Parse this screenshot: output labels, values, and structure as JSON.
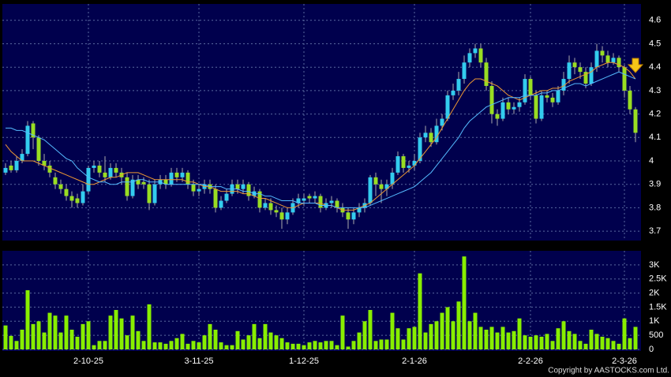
{
  "chart_data": [
    {
      "type": "candlestick",
      "ylim": [
        3.66,
        4.67
      ],
      "yticks": [
        3.7,
        3.8,
        3.9,
        4,
        4.1,
        4.2,
        4.3,
        4.4,
        4.5,
        4.6
      ],
      "grid": true,
      "up_color": "#33ccee",
      "down_color": "#99dd22",
      "wick_color": "#aaaaaa",
      "open": [
        3.95,
        3.98,
        3.96,
        4.0,
        4.03,
        4.16,
        4.1,
        4.0,
        3.98,
        3.93,
        3.9,
        3.88,
        3.85,
        3.84,
        3.82,
        3.87,
        3.97,
        3.98,
        3.95,
        3.93,
        3.97,
        3.95,
        3.93,
        3.85,
        3.92,
        3.91,
        3.9,
        3.82,
        3.9,
        3.92,
        3.9,
        3.95,
        3.93,
        3.95,
        3.9,
        3.87,
        3.88,
        3.9,
        3.88,
        3.8,
        3.83,
        3.86,
        3.9,
        3.88,
        3.9,
        3.85,
        3.87,
        3.8,
        3.82,
        3.79,
        3.78,
        3.75,
        3.78,
        3.82,
        3.83,
        3.85,
        3.84,
        3.85,
        3.8,
        3.82,
        3.83,
        3.8,
        3.78,
        3.75,
        3.78,
        3.8,
        3.82,
        3.93,
        3.9,
        3.88,
        3.9,
        3.95,
        4.02,
        3.97,
        3.98,
        4.0,
        4.1,
        4.12,
        4.08,
        4.15,
        4.18,
        4.28,
        4.3,
        4.35,
        4.42,
        4.46,
        4.48,
        4.42,
        4.32,
        4.2,
        4.18,
        4.25,
        4.22,
        4.23,
        4.25,
        4.35,
        4.28,
        4.18,
        4.28,
        4.27,
        4.25,
        4.3,
        4.35,
        4.42,
        4.4,
        4.38,
        4.33,
        4.4,
        4.47,
        4.45,
        4.42,
        4.44,
        4.4,
        4.3,
        4.22
      ],
      "high": [
        3.99,
        4.0,
        4.02,
        4.05,
        4.17,
        4.17,
        4.11,
        4.03,
        4.0,
        3.95,
        3.92,
        3.9,
        3.87,
        3.86,
        3.9,
        3.98,
        4.0,
        4.0,
        4.02,
        3.99,
        3.99,
        3.97,
        3.95,
        3.94,
        3.94,
        3.93,
        3.92,
        3.92,
        3.94,
        3.94,
        3.97,
        3.97,
        3.97,
        3.96,
        3.92,
        3.9,
        3.92,
        3.92,
        3.9,
        3.85,
        3.88,
        3.92,
        3.92,
        3.92,
        3.91,
        3.89,
        3.88,
        3.84,
        3.84,
        3.81,
        3.8,
        3.8,
        3.84,
        3.86,
        3.86,
        3.86,
        3.87,
        3.86,
        3.84,
        3.85,
        3.84,
        3.82,
        3.8,
        3.8,
        3.82,
        3.84,
        3.94,
        3.95,
        3.92,
        3.92,
        3.97,
        4.04,
        4.03,
        4.0,
        4.03,
        4.12,
        4.15,
        4.14,
        4.18,
        4.2,
        4.3,
        4.33,
        4.38,
        4.45,
        4.48,
        4.5,
        4.5,
        4.44,
        4.34,
        4.22,
        4.27,
        4.27,
        4.25,
        4.27,
        4.37,
        4.36,
        4.3,
        4.3,
        4.3,
        4.29,
        4.32,
        4.38,
        4.45,
        4.44,
        4.42,
        4.4,
        4.42,
        4.5,
        4.49,
        4.47,
        4.46,
        4.45,
        4.41,
        4.32,
        4.23
      ],
      "low": [
        3.94,
        3.95,
        3.95,
        3.99,
        4.02,
        4.05,
        3.98,
        3.96,
        3.93,
        3.88,
        3.86,
        3.83,
        3.8,
        3.8,
        3.81,
        3.86,
        3.95,
        3.93,
        3.91,
        3.92,
        3.93,
        3.9,
        3.83,
        3.84,
        3.88,
        3.88,
        3.79,
        3.81,
        3.88,
        3.88,
        3.89,
        3.91,
        3.91,
        3.88,
        3.85,
        3.85,
        3.86,
        3.86,
        3.78,
        3.79,
        3.82,
        3.85,
        3.86,
        3.86,
        3.83,
        3.84,
        3.78,
        3.79,
        3.77,
        3.76,
        3.71,
        3.73,
        3.77,
        3.8,
        3.81,
        3.82,
        3.82,
        3.78,
        3.79,
        3.8,
        3.78,
        3.76,
        3.71,
        3.73,
        3.76,
        3.78,
        3.81,
        3.85,
        3.82,
        3.85,
        3.88,
        3.94,
        3.95,
        3.95,
        3.96,
        3.99,
        4.08,
        4.06,
        4.07,
        4.13,
        4.17,
        4.26,
        4.28,
        4.33,
        4.4,
        4.44,
        4.4,
        4.3,
        4.16,
        4.15,
        4.17,
        4.2,
        4.2,
        4.21,
        4.24,
        4.26,
        4.16,
        4.17,
        4.25,
        4.23,
        4.24,
        4.28,
        4.33,
        4.37,
        4.35,
        4.31,
        4.32,
        4.38,
        4.42,
        4.4,
        4.41,
        4.38,
        4.27,
        4.2,
        4.08
      ],
      "close": [
        3.97,
        3.96,
        4.0,
        4.03,
        4.15,
        4.1,
        4.0,
        3.98,
        3.95,
        3.9,
        3.88,
        3.85,
        3.83,
        3.82,
        3.87,
        3.97,
        3.98,
        3.95,
        3.93,
        3.97,
        3.95,
        3.93,
        3.85,
        3.92,
        3.9,
        3.9,
        3.82,
        3.9,
        3.92,
        3.9,
        3.95,
        3.93,
        3.95,
        3.9,
        3.87,
        3.88,
        3.9,
        3.88,
        3.8,
        3.83,
        3.86,
        3.9,
        3.88,
        3.9,
        3.85,
        3.87,
        3.8,
        3.82,
        3.79,
        3.78,
        3.75,
        3.78,
        3.82,
        3.84,
        3.84,
        3.84,
        3.85,
        3.8,
        3.82,
        3.83,
        3.8,
        3.78,
        3.75,
        3.78,
        3.8,
        3.82,
        3.93,
        3.9,
        3.88,
        3.9,
        3.95,
        4.02,
        3.97,
        3.98,
        4.0,
        4.1,
        4.12,
        4.08,
        4.15,
        4.18,
        4.28,
        4.3,
        4.35,
        4.42,
        4.46,
        4.48,
        4.42,
        4.32,
        4.2,
        4.18,
        4.25,
        4.22,
        4.23,
        4.25,
        4.35,
        4.28,
        4.18,
        4.28,
        4.27,
        4.25,
        4.3,
        4.35,
        4.42,
        4.4,
        4.38,
        4.33,
        4.4,
        4.47,
        4.45,
        4.42,
        4.44,
        4.4,
        4.3,
        4.22,
        4.12
      ],
      "lines": [
        {
          "color": "#ee9933",
          "values": [
            4.07,
            4.04,
            4.02,
            4.0,
            4.0,
            4.0,
            3.99,
            3.98,
            3.97,
            3.96,
            3.95,
            3.94,
            3.93,
            3.92,
            3.91,
            3.9,
            3.9,
            3.91,
            3.92,
            3.93,
            3.93,
            3.94,
            3.95,
            3.95,
            3.95,
            3.94,
            3.93,
            3.92,
            3.92,
            3.92,
            3.92,
            3.92,
            3.92,
            3.91,
            3.91,
            3.9,
            3.89,
            3.89,
            3.88,
            3.87,
            3.87,
            3.87,
            3.87,
            3.86,
            3.86,
            3.85,
            3.84,
            3.84,
            3.83,
            3.82,
            3.81,
            3.8,
            3.8,
            3.81,
            3.82,
            3.82,
            3.82,
            3.82,
            3.81,
            3.81,
            3.8,
            3.79,
            3.79,
            3.79,
            3.8,
            3.81,
            3.82,
            3.84,
            3.86,
            3.88,
            3.9,
            3.92,
            3.94,
            3.96,
            3.98,
            4.01,
            4.04,
            4.07,
            4.1,
            4.14,
            4.18,
            4.22,
            4.26,
            4.3,
            4.33,
            4.35,
            4.35,
            4.34,
            4.33,
            4.32,
            4.3,
            4.28,
            4.27,
            4.26,
            4.27,
            4.28,
            4.29,
            4.3,
            4.3,
            4.31,
            4.31,
            4.32,
            4.34,
            4.35,
            4.36,
            4.37,
            4.38,
            4.4,
            4.41,
            4.42,
            4.42,
            4.41,
            4.4,
            4.38,
            4.35
          ]
        },
        {
          "color": "#55bbff",
          "values": [
            4.14,
            4.14,
            4.13,
            4.13,
            4.12,
            4.11,
            4.1,
            4.09,
            4.07,
            4.05,
            4.03,
            4.01,
            4.0,
            3.97,
            3.95,
            3.93,
            3.92,
            3.91,
            3.91,
            3.9,
            3.9,
            3.91,
            3.91,
            3.91,
            3.92,
            3.92,
            3.91,
            3.91,
            3.91,
            3.9,
            3.9,
            3.9,
            3.9,
            3.9,
            3.9,
            3.9,
            3.9,
            3.89,
            3.89,
            3.89,
            3.88,
            3.88,
            3.88,
            3.87,
            3.87,
            3.86,
            3.86,
            3.85,
            3.85,
            3.84,
            3.83,
            3.83,
            3.83,
            3.82,
            3.82,
            3.82,
            3.82,
            3.81,
            3.81,
            3.81,
            3.8,
            3.8,
            3.8,
            3.8,
            3.8,
            3.8,
            3.81,
            3.82,
            3.83,
            3.84,
            3.85,
            3.86,
            3.87,
            3.88,
            3.89,
            3.91,
            3.93,
            3.95,
            3.98,
            4.01,
            4.04,
            4.07,
            4.1,
            4.14,
            4.17,
            4.19,
            4.21,
            4.23,
            4.24,
            4.25,
            4.26,
            4.27,
            4.27,
            4.27,
            4.28,
            4.28,
            4.28,
            4.29,
            4.29,
            4.3,
            4.3,
            4.31,
            4.32,
            4.33,
            4.33,
            4.32,
            4.33,
            4.34,
            4.35,
            4.36,
            4.37,
            4.38,
            4.37,
            4.36,
            4.35
          ]
        }
      ]
    },
    {
      "type": "bar",
      "color": "#88ee00",
      "ylim": [
        0,
        3500
      ],
      "yticks": [
        0,
        500,
        {
          "value": 1000,
          "label": "1K"
        },
        {
          "value": 1500,
          "label": "1.5K"
        },
        {
          "value": 2000,
          "label": "2K"
        },
        {
          "value": 2500,
          "label": "2.5K"
        },
        {
          "value": 3000,
          "label": "3K"
        }
      ],
      "grid": true,
      "categories": [
        null,
        null,
        null,
        null,
        null,
        null,
        null,
        null,
        null,
        null,
        null,
        null,
        null,
        null,
        null,
        "2-10-25",
        null,
        null,
        null,
        null,
        null,
        null,
        null,
        null,
        null,
        null,
        null,
        null,
        null,
        null,
        null,
        null,
        null,
        null,
        null,
        "3-11-25",
        null,
        null,
        null,
        null,
        null,
        null,
        null,
        null,
        null,
        null,
        null,
        null,
        null,
        null,
        null,
        null,
        null,
        null,
        "1-12-25",
        null,
        null,
        null,
        null,
        null,
        null,
        null,
        null,
        null,
        null,
        null,
        null,
        null,
        null,
        null,
        null,
        null,
        null,
        null,
        "2-1-26",
        null,
        null,
        null,
        null,
        null,
        null,
        null,
        null,
        null,
        null,
        null,
        null,
        null,
        null,
        null,
        null,
        null,
        null,
        null,
        null,
        "2-2-26",
        null,
        null,
        null,
        null,
        null,
        null,
        null,
        null,
        null,
        null,
        null,
        null,
        null,
        null,
        null,
        null,
        "2-3-26",
        null,
        null
      ],
      "values": [
        850,
        480,
        300,
        700,
        2100,
        900,
        1000,
        600,
        1300,
        1200,
        600,
        1200,
        700,
        450,
        900,
        1000,
        150,
        300,
        300,
        1200,
        1400,
        1100,
        500,
        1200,
        650,
        300,
        1600,
        250,
        250,
        200,
        300,
        400,
        550,
        200,
        300,
        250,
        500,
        900,
        700,
        250,
        150,
        150,
        650,
        350,
        500,
        900,
        400,
        900,
        600,
        500,
        400,
        250,
        200,
        200,
        150,
        250,
        300,
        250,
        300,
        300,
        150,
        1200,
        100,
        300,
        600,
        1000,
        1400,
        300,
        350,
        350,
        1300,
        750,
        350,
        750,
        800,
        2700,
        600,
        900,
        1000,
        1300,
        1500,
        1000,
        1700,
        3300,
        1000,
        1300,
        800,
        700,
        800,
        600,
        800,
        600,
        650,
        1100,
        500,
        450,
        500,
        450,
        550,
        300,
        750,
        1000,
        650,
        550,
        300,
        200,
        700,
        550,
        450,
        400,
        300,
        200,
        1100,
        400,
        800
      ],
      "copyright": "Copyright by AASTOCKS.com Ltd."
    }
  ]
}
